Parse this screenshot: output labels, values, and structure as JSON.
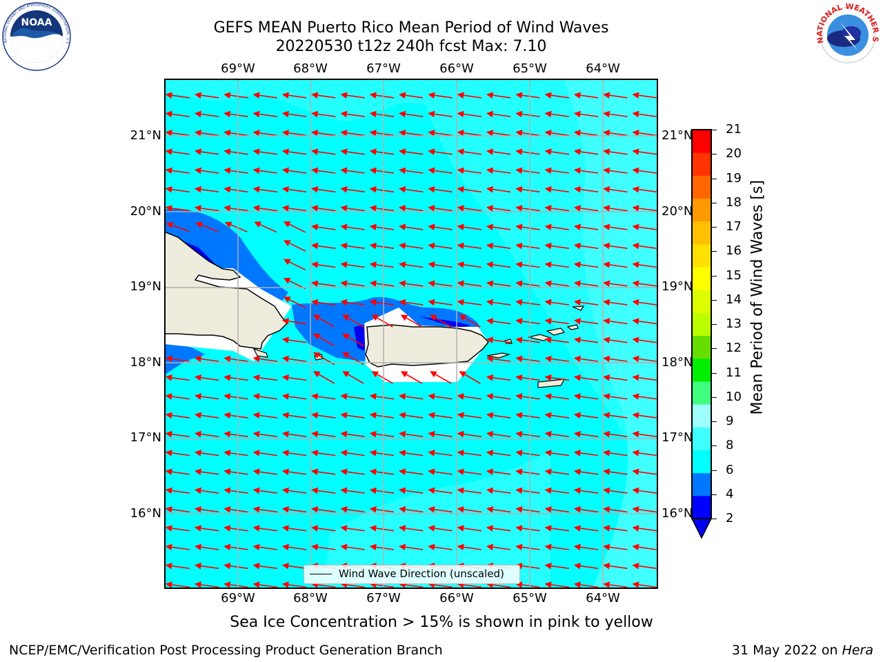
{
  "title": {
    "line1": "GEFS MEAN Puerto Rico Mean Period of Wind Waves",
    "line2": "20220530 t12z 240h fcst   Max: 7.10"
  },
  "logos": {
    "noara": "NOAA",
    "noaa_ring": "NATIONAL OCEANIC AND ATMOSPHERIC ADMINISTRATION · U.S. DEPARTMENT OF COMMERCE",
    "nws_ring": "NATIONAL WEATHER SERVICE"
  },
  "map": {
    "lon_labels": [
      "69°W",
      "68°W",
      "67°W",
      "66°W",
      "65°W",
      "64°W"
    ],
    "lat_labels": [
      "21°N",
      "20°N",
      "19°N",
      "18°N",
      "17°N",
      "16°N"
    ],
    "legend_label": "Wind Wave Direction (unscaled)",
    "arrow_color": "#ff0000",
    "ocean_color": "#00ffff",
    "land_color": "#eeecdc"
  },
  "colorbar": {
    "title": "Mean Period of Wind Waves [s]",
    "ticks": [
      "2",
      "4",
      "6",
      "8",
      "9",
      "10",
      "11",
      "12",
      "13",
      "14",
      "15",
      "16",
      "17",
      "18",
      "19",
      "20",
      "21"
    ],
    "colors": [
      "#0000ff",
      "#0077ff",
      "#00ffff",
      "#40ffff",
      "#a0ffff",
      "#40ff80",
      "#00ee00",
      "#66dd00",
      "#bbff00",
      "#ddff00",
      "#ffff00",
      "#ffe000",
      "#ffc000",
      "#ff9900",
      "#ff6600",
      "#ff3300",
      "#ff0000"
    ],
    "extend_color": "#0000ee"
  },
  "note": "Sea Ice Concentration > 15% is shown in pink to yellow",
  "footer": {
    "left": "NCEP/EMC/Verification Post Processing Product Generation Branch",
    "right_date": "31 May 2022 on ",
    "right_host": "Hera"
  }
}
